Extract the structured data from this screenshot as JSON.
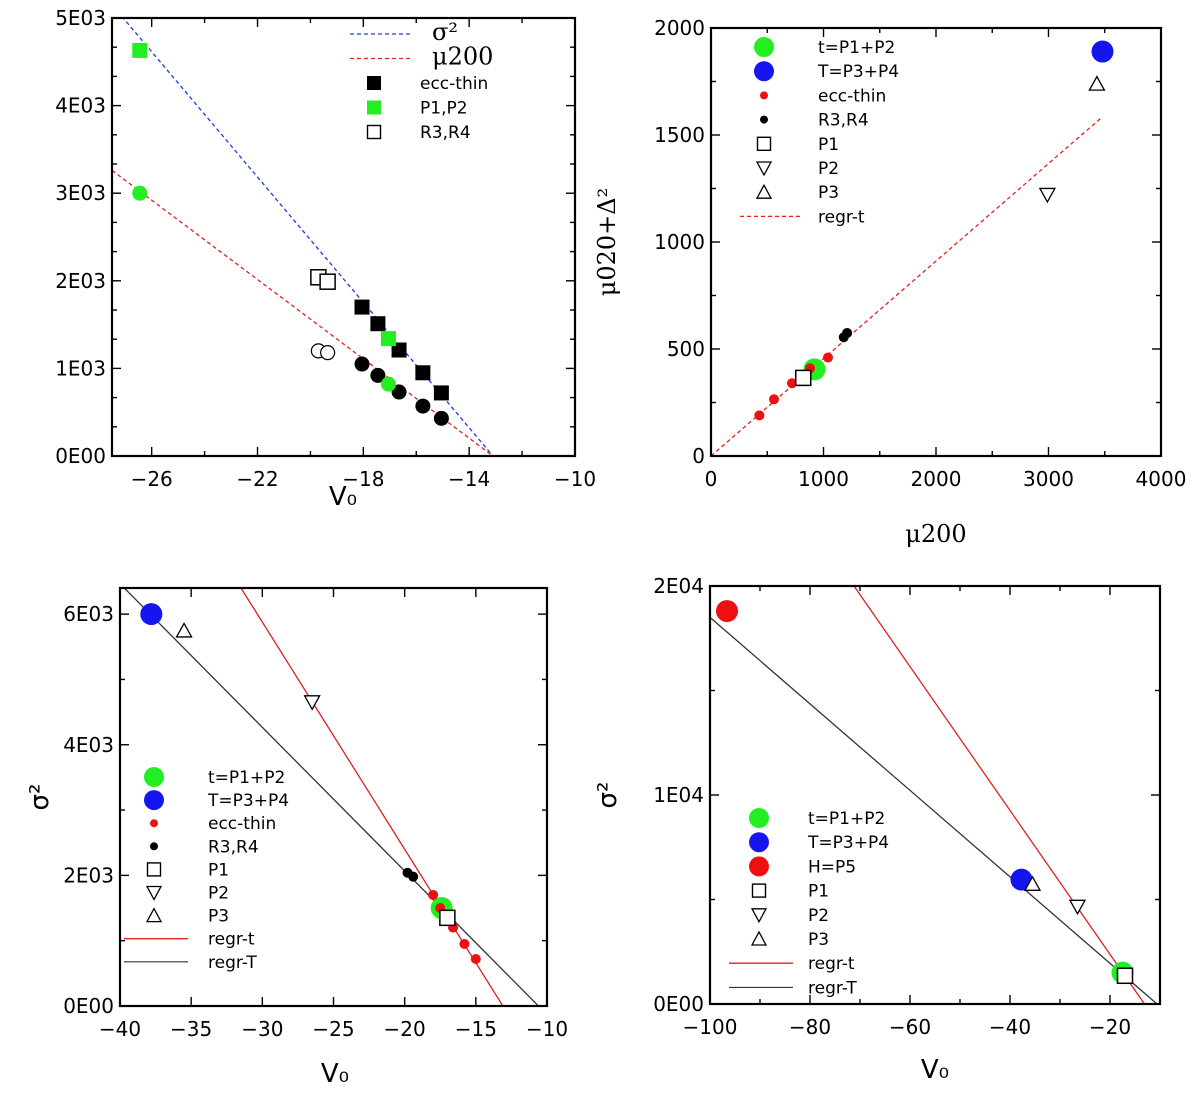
{
  "chart_data": [
    {
      "type": "scatter",
      "xlabel": "V₀",
      "ylabel": "",
      "xlim": [
        -27.5,
        -10
      ],
      "ylim": [
        0,
        5000
      ],
      "x_ticks": [
        -26,
        -22,
        -18,
        -14,
        -10
      ],
      "x_tick_labels": [
        "−26",
        "−22",
        "−18",
        "−14",
        "−10"
      ],
      "y_ticks": [
        0,
        1000,
        2000,
        3000,
        4000,
        5000
      ],
      "y_tick_labels": [
        "0E00",
        "1E03",
        "2E03",
        "3E03",
        "4E03",
        "5E03"
      ],
      "legend_position": "top-right",
      "legend": [
        {
          "label": "σ²",
          "symbol": "dash-blue"
        },
        {
          "label": "μ200",
          "symbol": "dash-red"
        },
        {
          "label": "ecc-thin",
          "symbol": "square-black"
        },
        {
          "label": "P1,P2",
          "symbol": "square-green"
        },
        {
          "label": "R3,R4",
          "symbol": "square-open"
        }
      ],
      "lines": [
        {
          "name": "σ²",
          "color": "#1f3bd6",
          "dash": true,
          "points": [
            [
              -27.3,
              5080
            ],
            [
              -13.1,
              0
            ]
          ]
        },
        {
          "name": "μ200",
          "color": "#e02020",
          "dash": true,
          "points": [
            [
              -27.5,
              3260
            ],
            [
              -13.1,
              0
            ]
          ]
        }
      ],
      "series": [
        {
          "name": "ecc-thin",
          "marker": "square",
          "color": "#000000",
          "x": [
            -18.05,
            -17.45,
            -16.65,
            -15.75,
            -15.05
          ],
          "y": [
            1700,
            1510,
            1210,
            950,
            720
          ]
        },
        {
          "name": "P1,P2",
          "marker": "square",
          "color": "#22ee22",
          "x": [
            -26.45,
            -17.05
          ],
          "y": [
            4630,
            1340
          ]
        },
        {
          "name": "R3,R4",
          "marker": "square-open",
          "color": "#000000",
          "x": [
            -19.7,
            -19.35
          ],
          "y": [
            2040,
            1990
          ]
        },
        {
          "name": "",
          "marker": "circle",
          "color": "#000000",
          "x": [
            -18.05,
            -17.45,
            -16.65,
            -15.75,
            -15.05
          ],
          "y": [
            1050,
            920,
            730,
            570,
            430
          ]
        },
        {
          "name": "",
          "marker": "circle",
          "color": "#22ee22",
          "x": [
            -26.45,
            -17.05
          ],
          "y": [
            3000,
            820
          ]
        },
        {
          "name": "",
          "marker": "circle-open",
          "color": "#000000",
          "x": [
            -19.7,
            -19.35
          ],
          "y": [
            1200,
            1180
          ]
        }
      ]
    },
    {
      "type": "scatter",
      "xlabel": "μ200",
      "ylabel": "μ020+Δ²",
      "xlim": [
        0,
        4000
      ],
      "ylim": [
        0,
        2000
      ],
      "x_ticks": [
        0,
        1000,
        2000,
        3000,
        4000
      ],
      "x_tick_labels": [
        "0",
        "1000",
        "2000",
        "3000",
        "4000"
      ],
      "y_ticks": [
        0,
        500,
        1000,
        1500,
        2000
      ],
      "y_tick_labels": [
        "0",
        "500",
        "1000",
        "1500",
        "2000"
      ],
      "legend_position": "top-left",
      "legend": [
        {
          "label": "t=P1+P2",
          "symbol": "big-green"
        },
        {
          "label": "T=P3+P4",
          "symbol": "big-blue"
        },
        {
          "label": "ecc-thin",
          "symbol": "dot-red"
        },
        {
          "label": "R3,R4",
          "symbol": "dot-black"
        },
        {
          "label": "P1",
          "symbol": "square-open"
        },
        {
          "label": "P2",
          "symbol": "tri-down"
        },
        {
          "label": "P3",
          "symbol": "tri-up"
        },
        {
          "label": "regr-t",
          "symbol": "dash-red"
        }
      ],
      "lines": [
        {
          "name": "regr-t",
          "color": "#e02020",
          "dash": true,
          "points": [
            [
              0,
              0
            ],
            [
              3480,
              1585
            ]
          ]
        }
      ],
      "series": [
        {
          "name": "t=P1+P2",
          "marker": "big-circle",
          "color": "#22ee22",
          "x": [
            920
          ],
          "y": [
            405
          ]
        },
        {
          "name": "T=P3+P4",
          "marker": "big-circle",
          "color": "#1515ee",
          "x": [
            3480
          ],
          "y": [
            1890
          ]
        },
        {
          "name": "ecc-thin",
          "marker": "dot",
          "color": "#ee1010",
          "x": [
            430,
            560,
            720,
            880,
            1040
          ],
          "y": [
            190,
            265,
            340,
            410,
            460
          ]
        },
        {
          "name": "R3,R4",
          "marker": "dot",
          "color": "#000000",
          "x": [
            1180,
            1210
          ],
          "y": [
            555,
            575
          ]
        },
        {
          "name": "P1",
          "marker": "square-open",
          "color": "#000000",
          "x": [
            820
          ],
          "y": [
            365
          ]
        },
        {
          "name": "P2",
          "marker": "tri-down",
          "color": "#000000",
          "x": [
            2990
          ],
          "y": [
            1220
          ]
        },
        {
          "name": "P3",
          "marker": "tri-up",
          "color": "#000000",
          "x": [
            3430
          ],
          "y": [
            1740
          ]
        }
      ]
    },
    {
      "type": "scatter",
      "xlabel": "V₀",
      "ylabel": "σ²",
      "xlim": [
        -40,
        -10
      ],
      "ylim": [
        0,
        6400
      ],
      "x_ticks": [
        -40,
        -35,
        -30,
        -25,
        -20,
        -15,
        -10
      ],
      "x_tick_labels": [
        "−40",
        "−35",
        "−30",
        "−25",
        "−20",
        "−15",
        "−10"
      ],
      "y_ticks": [
        0,
        2000,
        4000,
        6000
      ],
      "y_tick_labels": [
        "0E00",
        "2E03",
        "4E03",
        "6E03"
      ],
      "legend_position": "bottom-left",
      "legend": [
        {
          "label": "t=P1+P2",
          "symbol": "big-green"
        },
        {
          "label": "T=P3+P4",
          "symbol": "big-blue"
        },
        {
          "label": "ecc-thin",
          "symbol": "dot-red"
        },
        {
          "label": "R3,R4",
          "symbol": "dot-black"
        },
        {
          "label": "P1",
          "symbol": "square-open"
        },
        {
          "label": "P2",
          "symbol": "tri-down"
        },
        {
          "label": "P3",
          "symbol": "tri-up"
        },
        {
          "label": "regr-t",
          "symbol": "line-red"
        },
        {
          "label": "regr-T",
          "symbol": "line-black"
        }
      ],
      "lines": [
        {
          "name": "regr-t",
          "color": "#e02020",
          "dash": false,
          "points": [
            [
              -31.5,
              6400
            ],
            [
              -13.1,
              0
            ]
          ]
        },
        {
          "name": "regr-T",
          "color": "#333333",
          "dash": false,
          "points": [
            [
              -39.7,
              6400
            ],
            [
              -10.6,
              0
            ]
          ]
        }
      ],
      "series": [
        {
          "name": "t=P1+P2",
          "marker": "big-circle",
          "color": "#22ee22",
          "x": [
            -17.4
          ],
          "y": [
            1500
          ]
        },
        {
          "name": "T=P3+P4",
          "marker": "big-circle",
          "color": "#1515ee",
          "x": [
            -37.8
          ],
          "y": [
            6000
          ]
        },
        {
          "name": "ecc-thin",
          "marker": "dot",
          "color": "#ee1010",
          "x": [
            -18.0,
            -17.5,
            -16.6,
            -15.8,
            -15.0
          ],
          "y": [
            1700,
            1500,
            1200,
            950,
            720
          ]
        },
        {
          "name": "R3,R4",
          "marker": "dot",
          "color": "#000000",
          "x": [
            -19.8,
            -19.4
          ],
          "y": [
            2040,
            1980
          ]
        },
        {
          "name": "P1",
          "marker": "square-open",
          "color": "#000000",
          "x": [
            -17.0
          ],
          "y": [
            1350
          ]
        },
        {
          "name": "P2",
          "marker": "tri-down",
          "color": "#000000",
          "x": [
            -26.5
          ],
          "y": [
            4650
          ]
        },
        {
          "name": "P3",
          "marker": "tri-up",
          "color": "#000000",
          "x": [
            -35.5
          ],
          "y": [
            5750
          ]
        }
      ]
    },
    {
      "type": "scatter",
      "xlabel": "V₀",
      "ylabel": "σ²",
      "xlim": [
        -100,
        -10
      ],
      "ylim": [
        0,
        20000
      ],
      "x_ticks": [
        -100,
        -80,
        -60,
        -40,
        -20
      ],
      "x_tick_labels": [
        "−100",
        "−80",
        "−60",
        "−40",
        "−20"
      ],
      "y_ticks": [
        0,
        10000,
        20000
      ],
      "y_tick_labels": [
        "0E00",
        "1E04",
        "2E04"
      ],
      "legend_position": "bottom-left",
      "legend": [
        {
          "label": "t=P1+P2",
          "symbol": "big-green"
        },
        {
          "label": "T=P3+P4",
          "symbol": "big-blue"
        },
        {
          "label": "H=P5",
          "symbol": "big-red"
        },
        {
          "label": "P1",
          "symbol": "square-open"
        },
        {
          "label": "P2",
          "symbol": "tri-down"
        },
        {
          "label": "P3",
          "symbol": "tri-up"
        },
        {
          "label": "regr-t",
          "symbol": "line-red"
        },
        {
          "label": "regr-T",
          "symbol": "line-black"
        }
      ],
      "lines": [
        {
          "name": "regr-t",
          "color": "#e02020",
          "dash": false,
          "points": [
            [
              -71.2,
              20000
            ],
            [
              -13.1,
              0
            ]
          ]
        },
        {
          "name": "regr-T",
          "color": "#333333",
          "dash": false,
          "points": [
            [
              -100,
              18500
            ],
            [
              -10.6,
              0
            ]
          ]
        }
      ],
      "series": [
        {
          "name": "t=P1+P2",
          "marker": "big-circle",
          "color": "#22ee22",
          "x": [
            -17.5
          ],
          "y": [
            1500
          ]
        },
        {
          "name": "T=P3+P4",
          "marker": "big-circle",
          "color": "#1515ee",
          "x": [
            -37.7
          ],
          "y": [
            5950
          ]
        },
        {
          "name": "H=P5",
          "marker": "big-circle",
          "color": "#ee1010",
          "x": [
            -96.6
          ],
          "y": [
            18800
          ]
        },
        {
          "name": "P1",
          "marker": "square-open",
          "color": "#000000",
          "x": [
            -17.0
          ],
          "y": [
            1350
          ]
        },
        {
          "name": "P2",
          "marker": "tri-down",
          "color": "#000000",
          "x": [
            -26.5
          ],
          "y": [
            4650
          ]
        },
        {
          "name": "P3",
          "marker": "tri-up",
          "color": "#000000",
          "x": [
            -35.5
          ],
          "y": [
            5750
          ]
        }
      ]
    }
  ]
}
